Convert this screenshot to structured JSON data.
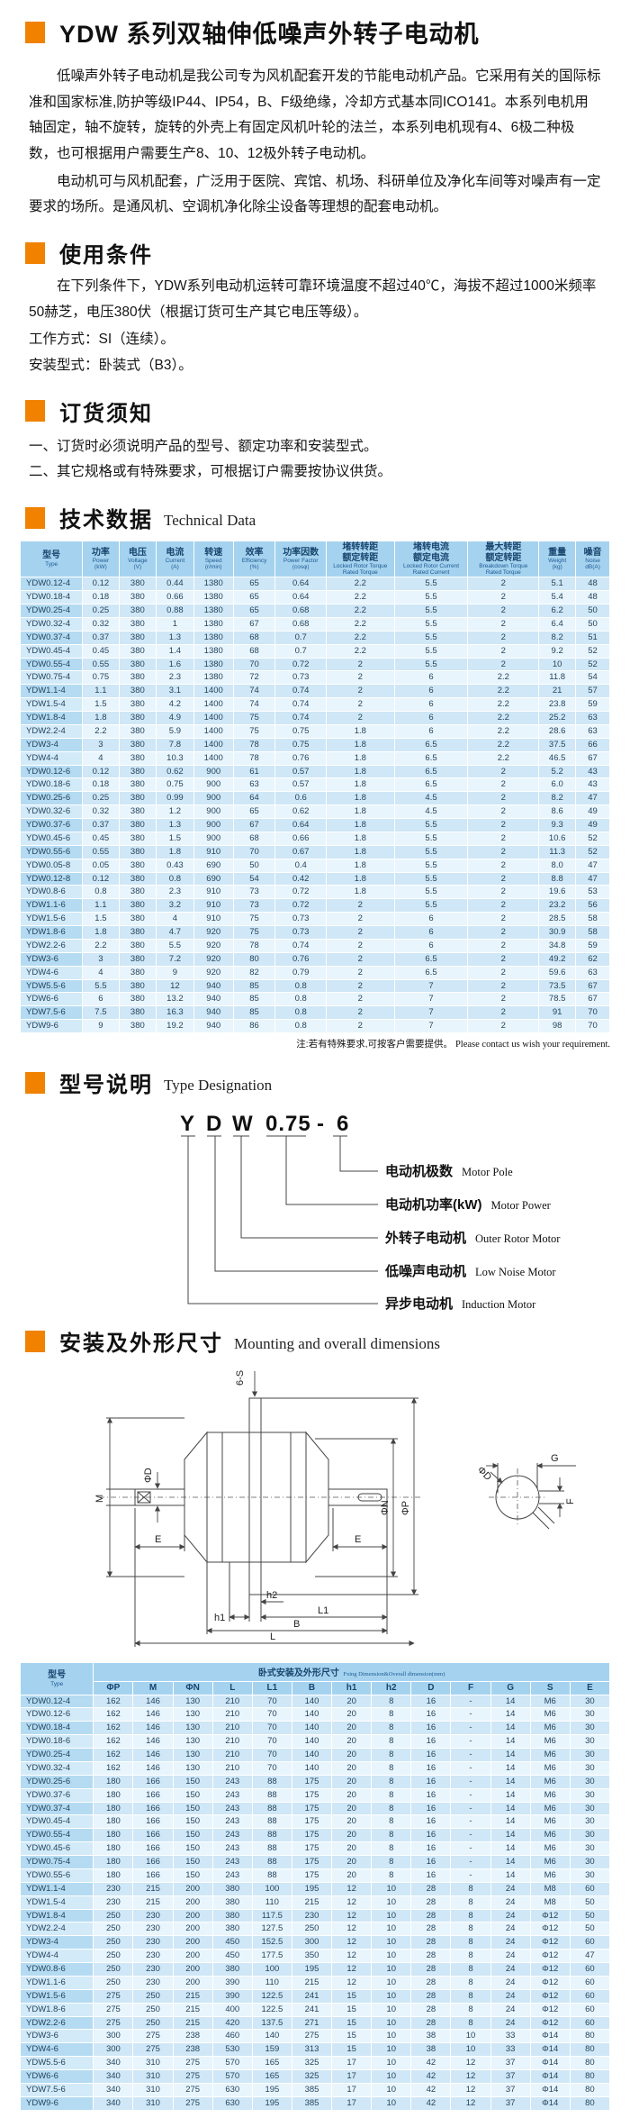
{
  "colors": {
    "accent": "#f08200",
    "table_header": "#a5d3ef",
    "row_odd": "#cfe7f6",
    "row_even": "#e9f5fc"
  },
  "header": {
    "title": "YDW 系列双轴伸低噪声外转子电动机"
  },
  "intro": {
    "p1": "低噪声外转子电动机是我公司专为风机配套开发的节能电动机产品。它采用有关的国际标准和国家标准,防护等级IP44、IP54，B、F级绝缘，冷却方式基本同ICO141。本系列电机用轴固定，轴不旋转，旋转的外壳上有固定风机叶轮的法兰，本系列电机现有4、6极二种极数，也可根据用户需要生产8、10、12极外转子电动机。",
    "p2": "电动机可与风机配套，广泛用于医院、宾馆、机场、科研单位及净化车间等对噪声有一定要求的场所。是通风机、空调机净化除尘设备等理想的配套电动机。"
  },
  "usage": {
    "title": "使用条件",
    "p1": "在下列条件下，YDW系列电动机运转可靠环境温度不超过40℃，海拔不超过1000米频率50赫芝，电压380伏（根据订货可生产其它电压等级）。",
    "line1": "工作方式：SI（连续）。",
    "line2": "安装型式：卧装式（B3）。"
  },
  "ordering": {
    "title": "订货须知",
    "item1": "一、订货时必须说明产品的型号、额定功率和安装型式。",
    "item2": "二、其它规格或有特殊要求，可根据订户需要按协议供货。"
  },
  "tech": {
    "title_cn": "技术数据",
    "title_en": "Technical Data"
  },
  "tech_table": {
    "columns": [
      {
        "cn": [
          "型号"
        ],
        "en": [
          "Type"
        ]
      },
      {
        "cn": [
          "功率"
        ],
        "en": [
          "Power",
          "(kW)"
        ]
      },
      {
        "cn": [
          "电压"
        ],
        "en": [
          "Voltage",
          "(V)"
        ]
      },
      {
        "cn": [
          "电流"
        ],
        "en": [
          "Current",
          "(A)"
        ]
      },
      {
        "cn": [
          "转速"
        ],
        "en": [
          "Speed",
          "(r/min)"
        ]
      },
      {
        "cn": [
          "效率"
        ],
        "en": [
          "Efficiency",
          "(%)"
        ]
      },
      {
        "cn": [
          "功率因数"
        ],
        "en": [
          "Power Factor",
          "(cosφ)"
        ]
      },
      {
        "cn": [
          "堵转转距",
          "额定转距"
        ],
        "en": [
          "Locked Rotor Torque",
          "Rated Torque"
        ]
      },
      {
        "cn": [
          "堵转电流",
          "额定电流"
        ],
        "en": [
          "Locked Rotor Current",
          "Rated Current"
        ]
      },
      {
        "cn": [
          "最大转距",
          "额定转距"
        ],
        "en": [
          "Breakdown Torque",
          "Rated Torque"
        ]
      },
      {
        "cn": [
          "重量"
        ],
        "en": [
          "Weight",
          "(kg)"
        ]
      },
      {
        "cn": [
          "噪音"
        ],
        "en": [
          "Noise",
          "dB(A)"
        ]
      }
    ],
    "rows": [
      [
        "YDW0.12-4",
        "0.12",
        "380",
        "0.44",
        "1380",
        "65",
        "0.64",
        "2.2",
        "5.5",
        "2",
        "5.1",
        "48"
      ],
      [
        "YDW0.18-4",
        "0.18",
        "380",
        "0.66",
        "1380",
        "65",
        "0.64",
        "2.2",
        "5.5",
        "2",
        "5.4",
        "48"
      ],
      [
        "YDW0.25-4",
        "0.25",
        "380",
        "0.88",
        "1380",
        "65",
        "0.68",
        "2.2",
        "5.5",
        "2",
        "6.2",
        "50"
      ],
      [
        "YDW0.32-4",
        "0.32",
        "380",
        "1",
        "1380",
        "67",
        "0.68",
        "2.2",
        "5.5",
        "2",
        "6.4",
        "50"
      ],
      [
        "YDW0.37-4",
        "0.37",
        "380",
        "1.3",
        "1380",
        "68",
        "0.7",
        "2.2",
        "5.5",
        "2",
        "8.2",
        "51"
      ],
      [
        "YDW0.45-4",
        "0.45",
        "380",
        "1.4",
        "1380",
        "68",
        "0.7",
        "2.2",
        "5.5",
        "2",
        "9.2",
        "52"
      ],
      [
        "YDW0.55-4",
        "0.55",
        "380",
        "1.6",
        "1380",
        "70",
        "0.72",
        "2",
        "5.5",
        "2",
        "10",
        "52"
      ],
      [
        "YDW0.75-4",
        "0.75",
        "380",
        "2.3",
        "1380",
        "72",
        "0.73",
        "2",
        "6",
        "2.2",
        "11.8",
        "54"
      ],
      [
        "YDW1.1-4",
        "1.1",
        "380",
        "3.1",
        "1400",
        "74",
        "0.74",
        "2",
        "6",
        "2.2",
        "21",
        "57"
      ],
      [
        "YDW1.5-4",
        "1.5",
        "380",
        "4.2",
        "1400",
        "74",
        "0.74",
        "2",
        "6",
        "2.2",
        "23.8",
        "59"
      ],
      [
        "YDW1.8-4",
        "1.8",
        "380",
        "4.9",
        "1400",
        "75",
        "0.74",
        "2",
        "6",
        "2.2",
        "25.2",
        "63"
      ],
      [
        "YDW2.2-4",
        "2.2",
        "380",
        "5.9",
        "1400",
        "75",
        "0.75",
        "1.8",
        "6",
        "2.2",
        "28.6",
        "63"
      ],
      [
        "YDW3-4",
        "3",
        "380",
        "7.8",
        "1400",
        "78",
        "0.75",
        "1.8",
        "6.5",
        "2.2",
        "37.5",
        "66"
      ],
      [
        "YDW4-4",
        "4",
        "380",
        "10.3",
        "1400",
        "78",
        "0.76",
        "1.8",
        "6.5",
        "2.2",
        "46.5",
        "67"
      ],
      [
        "YDW0.12-6",
        "0.12",
        "380",
        "0.62",
        "900",
        "61",
        "0.57",
        "1.8",
        "6.5",
        "2",
        "5.2",
        "43"
      ],
      [
        "YDW0.18-6",
        "0.18",
        "380",
        "0.75",
        "900",
        "63",
        "0.57",
        "1.8",
        "6.5",
        "2",
        "6.0",
        "43"
      ],
      [
        "YDW0.25-6",
        "0.25",
        "380",
        "0.99",
        "900",
        "64",
        "0.6",
        "1.8",
        "4.5",
        "2",
        "8.2",
        "47"
      ],
      [
        "YDW0.32-6",
        "0.32",
        "380",
        "1.2",
        "900",
        "65",
        "0.62",
        "1.8",
        "4.5",
        "2",
        "8.6",
        "49"
      ],
      [
        "YDW0.37-6",
        "0.37",
        "380",
        "1.3",
        "900",
        "67",
        "0.64",
        "1.8",
        "5.5",
        "2",
        "9.3",
        "49"
      ],
      [
        "YDW0.45-6",
        "0.45",
        "380",
        "1.5",
        "900",
        "68",
        "0.66",
        "1.8",
        "5.5",
        "2",
        "10.6",
        "52"
      ],
      [
        "YDW0.55-6",
        "0.55",
        "380",
        "1.8",
        "910",
        "70",
        "0.67",
        "1.8",
        "5.5",
        "2",
        "11.3",
        "52"
      ],
      [
        "YDW0.05-8",
        "0.05",
        "380",
        "0.43",
        "690",
        "50",
        "0.4",
        "1.8",
        "5.5",
        "2",
        "8.0",
        "47"
      ],
      [
        "YDW0.12-8",
        "0.12",
        "380",
        "0.8",
        "690",
        "54",
        "0.42",
        "1.8",
        "5.5",
        "2",
        "8.8",
        "47"
      ],
      [
        "YDW0.8-6",
        "0.8",
        "380",
        "2.3",
        "910",
        "73",
        "0.72",
        "1.8",
        "5.5",
        "2",
        "19.6",
        "53"
      ],
      [
        "YDW1.1-6",
        "1.1",
        "380",
        "3.2",
        "910",
        "73",
        "0.72",
        "2",
        "5.5",
        "2",
        "23.2",
        "56"
      ],
      [
        "YDW1.5-6",
        "1.5",
        "380",
        "4",
        "910",
        "75",
        "0.73",
        "2",
        "6",
        "2",
        "28.5",
        "58"
      ],
      [
        "YDW1.8-6",
        "1.8",
        "380",
        "4.7",
        "920",
        "75",
        "0.73",
        "2",
        "6",
        "2",
        "30.9",
        "58"
      ],
      [
        "YDW2.2-6",
        "2.2",
        "380",
        "5.5",
        "920",
        "78",
        "0.74",
        "2",
        "6",
        "2",
        "34.8",
        "59"
      ],
      [
        "YDW3-6",
        "3",
        "380",
        "7.2",
        "920",
        "80",
        "0.76",
        "2",
        "6.5",
        "2",
        "49.2",
        "62"
      ],
      [
        "YDW4-6",
        "4",
        "380",
        "9",
        "920",
        "82",
        "0.79",
        "2",
        "6.5",
        "2",
        "59.6",
        "63"
      ],
      [
        "YDW5.5-6",
        "5.5",
        "380",
        "12",
        "940",
        "85",
        "0.8",
        "2",
        "7",
        "2",
        "73.5",
        "67"
      ],
      [
        "YDW6-6",
        "6",
        "380",
        "13.2",
        "940",
        "85",
        "0.8",
        "2",
        "7",
        "2",
        "78.5",
        "67"
      ],
      [
        "YDW7.5-6",
        "7.5",
        "380",
        "16.3",
        "940",
        "85",
        "0.8",
        "2",
        "7",
        "2",
        "91",
        "70"
      ],
      [
        "YDW9-6",
        "9",
        "380",
        "19.2",
        "940",
        "86",
        "0.8",
        "2",
        "7",
        "2",
        "98",
        "70"
      ]
    ],
    "note_cn": "注:若有特殊要求,可按客户需要提供。",
    "note_en": "Please contact us wish your requirement."
  },
  "designation": {
    "title_cn": "型号说明",
    "title_en": "Type Designation",
    "code_parts": [
      "Y",
      "D",
      "W",
      "0.75",
      "-",
      "6"
    ],
    "labels": [
      {
        "cn": "电动机极数",
        "en": "Motor Pole"
      },
      {
        "cn": "电动机功率(kW)",
        "en": "Motor Power"
      },
      {
        "cn": "外转子电动机",
        "en": "Outer Rotor Motor"
      },
      {
        "cn": "低噪声电动机",
        "en": "Low Noise Motor"
      },
      {
        "cn": "异步电动机",
        "en": "Induction Motor"
      }
    ]
  },
  "mounting": {
    "title_cn": "安装及外形尺寸",
    "title_en": "Mounting and overall dimensions"
  },
  "drawing": {
    "labels": {
      "bolts": "6-S",
      "m": "M",
      "d": "ΦD",
      "e": "E",
      "n": "ΦN",
      "p": "ΦP",
      "h1": "h1",
      "h2": "h2",
      "l1": "L1",
      "b": "B",
      "l": "L",
      "g": "G",
      "f": "F"
    }
  },
  "dims_table": {
    "type_cn": "型号",
    "type_en": "Type",
    "group_cn": "卧式安装及外形尺寸",
    "group_en": "Fxing Dimension&Overall dimension(mm)",
    "columns": [
      "ΦP",
      "M",
      "ΦN",
      "L",
      "L1",
      "B",
      "h1",
      "h2",
      "D",
      "F",
      "G",
      "S",
      "E"
    ],
    "rows": [
      [
        "YDW0.12-4",
        "162",
        "146",
        "130",
        "210",
        "70",
        "140",
        "20",
        "8",
        "16",
        "-",
        "14",
        "M6",
        "30"
      ],
      [
        "YDW0.12-6",
        "162",
        "146",
        "130",
        "210",
        "70",
        "140",
        "20",
        "8",
        "16",
        "-",
        "14",
        "M6",
        "30"
      ],
      [
        "YDW0.18-4",
        "162",
        "146",
        "130",
        "210",
        "70",
        "140",
        "20",
        "8",
        "16",
        "-",
        "14",
        "M6",
        "30"
      ],
      [
        "YDW0.18-6",
        "162",
        "146",
        "130",
        "210",
        "70",
        "140",
        "20",
        "8",
        "16",
        "-",
        "14",
        "M6",
        "30"
      ],
      [
        "YDW0.25-4",
        "162",
        "146",
        "130",
        "210",
        "70",
        "140",
        "20",
        "8",
        "16",
        "-",
        "14",
        "M6",
        "30"
      ],
      [
        "YDW0.32-4",
        "162",
        "146",
        "130",
        "210",
        "70",
        "140",
        "20",
        "8",
        "16",
        "-",
        "14",
        "M6",
        "30"
      ],
      [
        "YDW0.25-6",
        "180",
        "166",
        "150",
        "243",
        "88",
        "175",
        "20",
        "8",
        "16",
        "-",
        "14",
        "M6",
        "30"
      ],
      [
        "YDW0.37-6",
        "180",
        "166",
        "150",
        "243",
        "88",
        "175",
        "20",
        "8",
        "16",
        "-",
        "14",
        "M6",
        "30"
      ],
      [
        "YDW0.37-4",
        "180",
        "166",
        "150",
        "243",
        "88",
        "175",
        "20",
        "8",
        "16",
        "-",
        "14",
        "M6",
        "30"
      ],
      [
        "YDW0.45-4",
        "180",
        "166",
        "150",
        "243",
        "88",
        "175",
        "20",
        "8",
        "16",
        "-",
        "14",
        "M6",
        "30"
      ],
      [
        "YDW0.55-4",
        "180",
        "166",
        "150",
        "243",
        "88",
        "175",
        "20",
        "8",
        "16",
        "-",
        "14",
        "M6",
        "30"
      ],
      [
        "YDW0.45-6",
        "180",
        "166",
        "150",
        "243",
        "88",
        "175",
        "20",
        "8",
        "16",
        "-",
        "14",
        "M6",
        "30"
      ],
      [
        "YDW0.75-4",
        "180",
        "166",
        "150",
        "243",
        "88",
        "175",
        "20",
        "8",
        "16",
        "-",
        "14",
        "M6",
        "30"
      ],
      [
        "YDW0.55-6",
        "180",
        "166",
        "150",
        "243",
        "88",
        "175",
        "20",
        "8",
        "16",
        "-",
        "14",
        "M6",
        "30"
      ],
      [
        "YDW1.1-4",
        "230",
        "215",
        "200",
        "380",
        "100",
        "195",
        "12",
        "10",
        "28",
        "8",
        "24",
        "M8",
        "60"
      ],
      [
        "YDW1.5-4",
        "230",
        "215",
        "200",
        "380",
        "110",
        "215",
        "12",
        "10",
        "28",
        "8",
        "24",
        "M8",
        "50"
      ],
      [
        "YDW1.8-4",
        "250",
        "230",
        "200",
        "380",
        "117.5",
        "230",
        "12",
        "10",
        "28",
        "8",
        "24",
        "Φ12",
        "50"
      ],
      [
        "YDW2.2-4",
        "250",
        "230",
        "200",
        "380",
        "127.5",
        "250",
        "12",
        "10",
        "28",
        "8",
        "24",
        "Φ12",
        "50"
      ],
      [
        "YDW3-4",
        "250",
        "230",
        "200",
        "450",
        "152.5",
        "300",
        "12",
        "10",
        "28",
        "8",
        "24",
        "Φ12",
        "60"
      ],
      [
        "YDW4-4",
        "250",
        "230",
        "200",
        "450",
        "177.5",
        "350",
        "12",
        "10",
        "28",
        "8",
        "24",
        "Φ12",
        "47"
      ],
      [
        "YDW0.8-6",
        "250",
        "230",
        "200",
        "380",
        "100",
        "195",
        "12",
        "10",
        "28",
        "8",
        "24",
        "Φ12",
        "60"
      ],
      [
        "YDW1.1-6",
        "250",
        "230",
        "200",
        "390",
        "110",
        "215",
        "12",
        "10",
        "28",
        "8",
        "24",
        "Φ12",
        "60"
      ],
      [
        "YDW1.5-6",
        "275",
        "250",
        "215",
        "390",
        "122.5",
        "241",
        "15",
        "10",
        "28",
        "8",
        "24",
        "Φ12",
        "60"
      ],
      [
        "YDW1.8-6",
        "275",
        "250",
        "215",
        "400",
        "122.5",
        "241",
        "15",
        "10",
        "28",
        "8",
        "24",
        "Φ12",
        "60"
      ],
      [
        "YDW2.2-6",
        "275",
        "250",
        "215",
        "420",
        "137.5",
        "271",
        "15",
        "10",
        "28",
        "8",
        "24",
        "Φ12",
        "60"
      ],
      [
        "YDW3-6",
        "300",
        "275",
        "238",
        "460",
        "140",
        "275",
        "15",
        "10",
        "38",
        "10",
        "33",
        "Φ14",
        "80"
      ],
      [
        "YDW4-6",
        "300",
        "275",
        "238",
        "530",
        "159",
        "313",
        "15",
        "10",
        "38",
        "10",
        "33",
        "Φ14",
        "80"
      ],
      [
        "YDW5.5-6",
        "340",
        "310",
        "275",
        "570",
        "165",
        "325",
        "17",
        "10",
        "42",
        "12",
        "37",
        "Φ14",
        "80"
      ],
      [
        "YDW6-6",
        "340",
        "310",
        "275",
        "570",
        "165",
        "325",
        "17",
        "10",
        "42",
        "12",
        "37",
        "Φ14",
        "80"
      ],
      [
        "YDW7.5-6",
        "340",
        "310",
        "275",
        "630",
        "195",
        "385",
        "17",
        "10",
        "42",
        "12",
        "37",
        "Φ14",
        "80"
      ],
      [
        "YDW9-6",
        "340",
        "310",
        "275",
        "630",
        "195",
        "385",
        "17",
        "10",
        "42",
        "12",
        "37",
        "Φ14",
        "80"
      ]
    ]
  }
}
